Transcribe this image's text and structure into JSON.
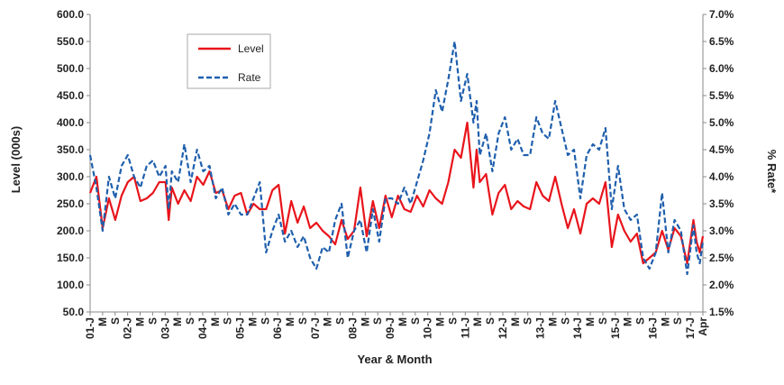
{
  "chart_data": {
    "type": "line",
    "xlabel": "Year & Month",
    "ylabel_left": "Level (000s)",
    "ylabel_right": "% Rate*",
    "ylim_left": [
      50,
      600
    ],
    "ylim_right": [
      1.5,
      7.0
    ],
    "left_ticks": [
      "600.0",
      "550.0",
      "500.0",
      "450.0",
      "400.0",
      "350.0",
      "300.0",
      "250.0",
      "200.0",
      "150.0",
      "100.0",
      "50.0"
    ],
    "right_ticks": [
      "7.0%",
      "6.5%",
      "6.0%",
      "5.5%",
      "5.0%",
      "4.5%",
      "4.0%",
      "3.5%",
      "3.0%",
      "2.5%",
      "2.0%",
      "1.5%"
    ],
    "x_labels": [
      "01-J",
      "M",
      "S",
      "02-J",
      "M",
      "S",
      "03-J",
      "M",
      "S",
      "04-J",
      "M",
      "S",
      "05-J",
      "M",
      "S",
      "06-J",
      "M",
      "S",
      "07-J",
      "M",
      "S",
      "08-J",
      "M",
      "S",
      "09-J",
      "M",
      "S",
      "10-J",
      "M",
      "S",
      "11-J",
      "M",
      "S",
      "12-J",
      "M",
      "S",
      "13-J",
      "M",
      "S",
      "14-J",
      "M",
      "S",
      "15-J",
      "M",
      "S",
      "16-J",
      "M",
      "S",
      "17-J",
      "Apr"
    ],
    "x_range": [
      "2001-01",
      "2017-04"
    ],
    "legend_position": "top-left",
    "grid": false,
    "series": [
      {
        "name": "Level",
        "axis": "left",
        "color": "#e8141b",
        "style": "solid",
        "points": [
          [
            "2001-01",
            270
          ],
          [
            "2001-03",
            300
          ],
          [
            "2001-05",
            205
          ],
          [
            "2001-07",
            260
          ],
          [
            "2001-09",
            220
          ],
          [
            "2001-11",
            265
          ],
          [
            "2002-01",
            290
          ],
          [
            "2002-03",
            300
          ],
          [
            "2002-05",
            255
          ],
          [
            "2002-07",
            260
          ],
          [
            "2002-09",
            270
          ],
          [
            "2002-11",
            290
          ],
          [
            "2003-01",
            290
          ],
          [
            "2003-02",
            220
          ],
          [
            "2003-03",
            280
          ],
          [
            "2003-05",
            250
          ],
          [
            "2003-07",
            275
          ],
          [
            "2003-09",
            255
          ],
          [
            "2003-11",
            300
          ],
          [
            "2004-01",
            285
          ],
          [
            "2004-03",
            310
          ],
          [
            "2004-05",
            270
          ],
          [
            "2004-07",
            275
          ],
          [
            "2004-09",
            240
          ],
          [
            "2004-11",
            265
          ],
          [
            "2005-01",
            270
          ],
          [
            "2005-03",
            230
          ],
          [
            "2005-05",
            250
          ],
          [
            "2005-07",
            240
          ],
          [
            "2005-09",
            240
          ],
          [
            "2005-11",
            275
          ],
          [
            "2006-01",
            285
          ],
          [
            "2006-03",
            195
          ],
          [
            "2006-05",
            255
          ],
          [
            "2006-07",
            215
          ],
          [
            "2006-09",
            245
          ],
          [
            "2006-11",
            205
          ],
          [
            "2007-01",
            215
          ],
          [
            "2007-03",
            200
          ],
          [
            "2007-05",
            190
          ],
          [
            "2007-07",
            175
          ],
          [
            "2007-09",
            220
          ],
          [
            "2007-11",
            185
          ],
          [
            "2008-01",
            200
          ],
          [
            "2008-03",
            280
          ],
          [
            "2008-05",
            190
          ],
          [
            "2008-07",
            255
          ],
          [
            "2008-09",
            205
          ],
          [
            "2008-11",
            265
          ],
          [
            "2009-01",
            225
          ],
          [
            "2009-03",
            265
          ],
          [
            "2009-05",
            240
          ],
          [
            "2009-07",
            235
          ],
          [
            "2009-09",
            265
          ],
          [
            "2009-11",
            245
          ],
          [
            "2010-01",
            275
          ],
          [
            "2010-03",
            260
          ],
          [
            "2010-05",
            250
          ],
          [
            "2010-07",
            290
          ],
          [
            "2010-09",
            350
          ],
          [
            "2010-11",
            335
          ],
          [
            "2011-01",
            400
          ],
          [
            "2011-03",
            280
          ],
          [
            "2011-04",
            350
          ],
          [
            "2011-05",
            290
          ],
          [
            "2011-07",
            305
          ],
          [
            "2011-09",
            230
          ],
          [
            "2011-11",
            270
          ],
          [
            "2012-01",
            285
          ],
          [
            "2012-03",
            240
          ],
          [
            "2012-05",
            255
          ],
          [
            "2012-07",
            245
          ],
          [
            "2012-09",
            240
          ],
          [
            "2012-11",
            290
          ],
          [
            "2013-01",
            265
          ],
          [
            "2013-03",
            255
          ],
          [
            "2013-05",
            300
          ],
          [
            "2013-07",
            250
          ],
          [
            "2013-09",
            205
          ],
          [
            "2013-11",
            240
          ],
          [
            "2014-01",
            195
          ],
          [
            "2014-03",
            250
          ],
          [
            "2014-05",
            260
          ],
          [
            "2014-07",
            250
          ],
          [
            "2014-09",
            290
          ],
          [
            "2014-11",
            170
          ],
          [
            "2015-01",
            230
          ],
          [
            "2015-03",
            200
          ],
          [
            "2015-05",
            180
          ],
          [
            "2015-07",
            195
          ],
          [
            "2015-09",
            140
          ],
          [
            "2015-11",
            150
          ],
          [
            "2016-01",
            160
          ],
          [
            "2016-03",
            200
          ],
          [
            "2016-05",
            165
          ],
          [
            "2016-07",
            205
          ],
          [
            "2016-09",
            190
          ],
          [
            "2016-11",
            140
          ],
          [
            "2017-01",
            220
          ],
          [
            "2017-02",
            180
          ],
          [
            "2017-03",
            160
          ],
          [
            "2017-04",
            190
          ]
        ]
      },
      {
        "name": "Rate",
        "axis": "right",
        "color": "#1f5fad",
        "style": "dashed",
        "points": [
          [
            "2001-01",
            4.4
          ],
          [
            "2001-03",
            3.8
          ],
          [
            "2001-05",
            3.0
          ],
          [
            "2001-07",
            4.0
          ],
          [
            "2001-09",
            3.6
          ],
          [
            "2001-11",
            4.2
          ],
          [
            "2002-01",
            4.4
          ],
          [
            "2002-03",
            4.0
          ],
          [
            "2002-05",
            3.8
          ],
          [
            "2002-07",
            4.2
          ],
          [
            "2002-09",
            4.3
          ],
          [
            "2002-11",
            4.0
          ],
          [
            "2003-01",
            4.2
          ],
          [
            "2003-02",
            3.4
          ],
          [
            "2003-03",
            4.1
          ],
          [
            "2003-05",
            3.9
          ],
          [
            "2003-07",
            4.6
          ],
          [
            "2003-09",
            3.9
          ],
          [
            "2003-11",
            4.5
          ],
          [
            "2004-01",
            4.1
          ],
          [
            "2004-03",
            4.2
          ],
          [
            "2004-05",
            3.6
          ],
          [
            "2004-07",
            3.8
          ],
          [
            "2004-09",
            3.3
          ],
          [
            "2004-11",
            3.5
          ],
          [
            "2005-01",
            3.3
          ],
          [
            "2005-03",
            3.3
          ],
          [
            "2005-05",
            3.6
          ],
          [
            "2005-07",
            3.9
          ],
          [
            "2005-09",
            2.6
          ],
          [
            "2005-11",
            3.0
          ],
          [
            "2006-01",
            3.3
          ],
          [
            "2006-03",
            2.8
          ],
          [
            "2006-05",
            3.0
          ],
          [
            "2006-07",
            2.7
          ],
          [
            "2006-09",
            2.9
          ],
          [
            "2006-11",
            2.5
          ],
          [
            "2007-01",
            2.3
          ],
          [
            "2007-03",
            2.7
          ],
          [
            "2007-05",
            2.6
          ],
          [
            "2007-07",
            3.2
          ],
          [
            "2007-09",
            3.5
          ],
          [
            "2007-11",
            2.5
          ],
          [
            "2008-01",
            3.0
          ],
          [
            "2008-03",
            3.2
          ],
          [
            "2008-05",
            2.6
          ],
          [
            "2008-07",
            3.4
          ],
          [
            "2008-09",
            2.8
          ],
          [
            "2008-11",
            3.6
          ],
          [
            "2009-01",
            3.6
          ],
          [
            "2009-03",
            3.5
          ],
          [
            "2009-05",
            3.8
          ],
          [
            "2009-07",
            3.5
          ],
          [
            "2009-09",
            3.9
          ],
          [
            "2009-11",
            4.3
          ],
          [
            "2010-01",
            4.8
          ],
          [
            "2010-03",
            5.6
          ],
          [
            "2010-05",
            5.2
          ],
          [
            "2010-07",
            5.8
          ],
          [
            "2010-09",
            6.5
          ],
          [
            "2010-11",
            5.4
          ],
          [
            "2011-01",
            5.9
          ],
          [
            "2011-03",
            5.0
          ],
          [
            "2011-04",
            5.4
          ],
          [
            "2011-05",
            4.4
          ],
          [
            "2011-07",
            4.8
          ],
          [
            "2011-09",
            4.1
          ],
          [
            "2011-11",
            4.8
          ],
          [
            "2012-01",
            5.1
          ],
          [
            "2012-03",
            4.5
          ],
          [
            "2012-05",
            4.7
          ],
          [
            "2012-07",
            4.4
          ],
          [
            "2012-09",
            4.4
          ],
          [
            "2012-11",
            5.1
          ],
          [
            "2013-01",
            4.8
          ],
          [
            "2013-03",
            4.7
          ],
          [
            "2013-05",
            5.4
          ],
          [
            "2013-07",
            4.9
          ],
          [
            "2013-09",
            4.4
          ],
          [
            "2013-11",
            4.5
          ],
          [
            "2014-01",
            3.6
          ],
          [
            "2014-03",
            4.4
          ],
          [
            "2014-05",
            4.6
          ],
          [
            "2014-07",
            4.5
          ],
          [
            "2014-09",
            4.9
          ],
          [
            "2014-11",
            3.4
          ],
          [
            "2015-01",
            4.2
          ],
          [
            "2015-03",
            3.4
          ],
          [
            "2015-05",
            3.2
          ],
          [
            "2015-07",
            3.3
          ],
          [
            "2015-09",
            2.5
          ],
          [
            "2015-11",
            2.3
          ],
          [
            "2016-01",
            2.6
          ],
          [
            "2016-03",
            3.7
          ],
          [
            "2016-05",
            2.6
          ],
          [
            "2016-07",
            3.2
          ],
          [
            "2016-09",
            3.0
          ],
          [
            "2016-11",
            2.2
          ],
          [
            "2017-01",
            3.1
          ],
          [
            "2017-02",
            2.6
          ],
          [
            "2017-03",
            2.4
          ],
          [
            "2017-04",
            2.8
          ]
        ]
      }
    ]
  }
}
